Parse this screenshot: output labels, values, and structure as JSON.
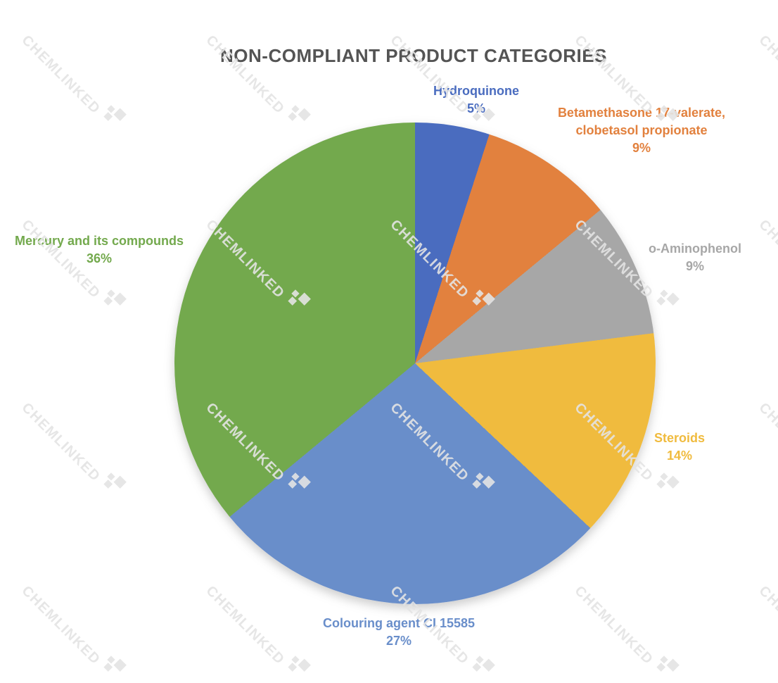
{
  "watermark": {
    "text": "CHEMLINKED"
  },
  "chart_data": {
    "type": "pie",
    "title": "NON-COMPLIANT PRODUCT CATEGORIES",
    "title_color": "#545454",
    "start_angle_deg": 0,
    "direction": "clockwise",
    "legend": "none",
    "slices": [
      {
        "label": "Hydroquinone",
        "value_pct": 5,
        "pct_label": "5%",
        "color": "#4A6CBF"
      },
      {
        "label": "Betamethasone 17-valerate, clobetasol propionate",
        "value_pct": 9,
        "pct_label": "9%",
        "color": "#E2813E"
      },
      {
        "label": "o-Aminophenol",
        "value_pct": 9,
        "pct_label": "9%",
        "color": "#A7A7A7"
      },
      {
        "label": "Steroids",
        "value_pct": 14,
        "pct_label": "14%",
        "color": "#F0BB3E"
      },
      {
        "label": "Colouring agent CI 15585",
        "value_pct": 27,
        "pct_label": "27%",
        "color": "#698ECA"
      },
      {
        "label": "Mercury and its compounds",
        "value_pct": 36,
        "pct_label": "36%",
        "color": "#73A94D"
      }
    ]
  }
}
